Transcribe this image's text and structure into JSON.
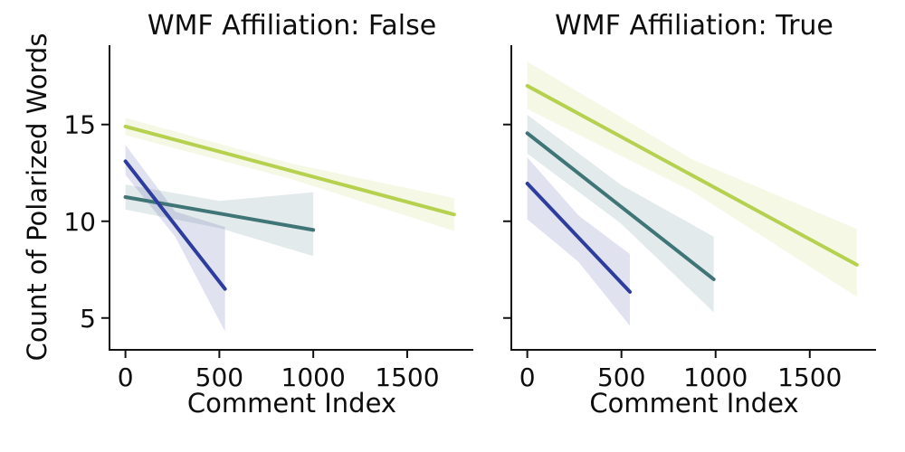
{
  "figure": {
    "background": "#ffffff",
    "axis_color": "#111111",
    "text_color": "#0d0d0d"
  },
  "ylabel": "Count of Polarized Words",
  "chart_data": [
    {
      "type": "line",
      "title": "WMF Affiliation: False",
      "xlabel": "Comment Index",
      "ylabel": "Count of Polarized Words",
      "xlim": [
        -80,
        1852
      ],
      "ylim": [
        3.4,
        19.1
      ],
      "xticks": [
        0,
        500,
        1000,
        1500
      ],
      "yticks": [
        5,
        10,
        15
      ],
      "show_ytick_labels": true,
      "grid": false,
      "legend": "none",
      "series": [
        {
          "name": "yellow-green",
          "color": "#b6d04f",
          "x": [
            0,
            1750
          ],
          "y": [
            14.9,
            10.35
          ],
          "ci_band": {
            "x": [
              0,
              875,
              1750
            ],
            "upper": [
              15.35,
              13.0,
              11.2
            ],
            "lower": [
              14.45,
              12.2,
              9.5
            ]
          }
        },
        {
          "name": "teal",
          "color": "#407577",
          "x": [
            0,
            1000
          ],
          "y": [
            11.25,
            9.55
          ],
          "ci_band": {
            "x": [
              0,
              500,
              1000
            ],
            "upper": [
              11.9,
              11.05,
              11.5
            ],
            "lower": [
              10.6,
              9.65,
              8.2
            ]
          }
        },
        {
          "name": "navy",
          "color": "#2e3d9d",
          "x": [
            0,
            530
          ],
          "y": [
            13.1,
            6.5
          ],
          "ci_band": {
            "x": [
              0,
              265,
              530
            ],
            "upper": [
              13.95,
              10.5,
              9.7
            ],
            "lower": [
              12.4,
              9.2,
              4.3
            ]
          }
        }
      ]
    },
    {
      "type": "line",
      "title": "WMF Affiliation: True",
      "xlabel": "Comment Index",
      "ylabel": "",
      "xlim": [
        -80,
        1852
      ],
      "ylim": [
        3.4,
        19.1
      ],
      "xticks": [
        0,
        500,
        1000,
        1500
      ],
      "yticks": [
        5,
        10,
        15
      ],
      "show_ytick_labels": false,
      "grid": false,
      "legend": "none",
      "series": [
        {
          "name": "yellow-green",
          "color": "#b6d04f",
          "x": [
            0,
            1750
          ],
          "y": [
            17.0,
            7.75
          ],
          "ci_band": {
            "x": [
              0,
              875,
              1750
            ],
            "upper": [
              18.25,
              13.2,
              9.6
            ],
            "lower": [
              15.8,
              11.55,
              6.1
            ]
          }
        },
        {
          "name": "teal",
          "color": "#407577",
          "x": [
            0,
            990
          ],
          "y": [
            14.55,
            7.0
          ],
          "ci_band": {
            "x": [
              0,
              495,
              990
            ],
            "upper": [
              15.5,
              11.9,
              9.2
            ],
            "lower": [
              13.5,
              9.9,
              5.3
            ]
          }
        },
        {
          "name": "navy",
          "color": "#2e3d9d",
          "x": [
            0,
            545
          ],
          "y": [
            11.95,
            6.35
          ],
          "ci_band": {
            "x": [
              0,
              272,
              545
            ],
            "upper": [
              13.3,
              10.3,
              8.3
            ],
            "lower": [
              10.1,
              7.9,
              4.6
            ]
          }
        }
      ]
    }
  ]
}
